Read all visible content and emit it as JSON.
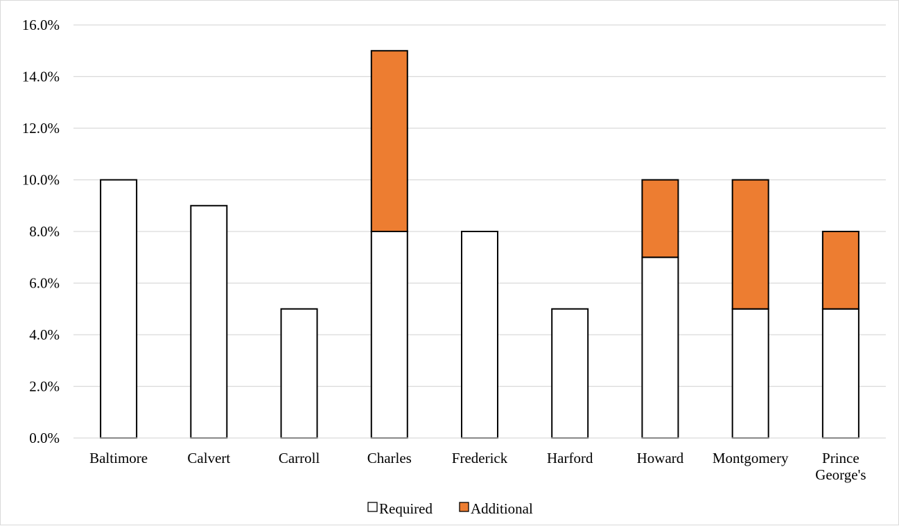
{
  "chart_data": {
    "type": "bar",
    "stacked": true,
    "categories": [
      "Baltimore",
      "Calvert",
      "Carroll",
      "Charles",
      "Frederick",
      "Harford",
      "Howard",
      "Montgomery",
      "Prince George's"
    ],
    "category_lines": [
      [
        "Baltimore"
      ],
      [
        "Calvert"
      ],
      [
        "Carroll"
      ],
      [
        "Charles"
      ],
      [
        "Frederick"
      ],
      [
        "Harford"
      ],
      [
        "Howard"
      ],
      [
        "Montgomery"
      ],
      [
        "Prince",
        "George's"
      ]
    ],
    "series": [
      {
        "name": "Required",
        "values": [
          10,
          9,
          5,
          8,
          8,
          5,
          7,
          5,
          5
        ],
        "color": "#ffffff",
        "stroke": "#000000"
      },
      {
        "name": "Additional",
        "values": [
          0,
          0,
          0,
          7,
          0,
          0,
          3,
          5,
          3
        ],
        "color": "#ed7d31",
        "stroke": "#000000"
      }
    ],
    "yticks": [
      "0.0%",
      "2.0%",
      "4.0%",
      "6.0%",
      "8.0%",
      "10.0%",
      "12.0%",
      "14.0%",
      "16.0%"
    ],
    "ylim": [
      0,
      16
    ],
    "ytick_step": 2,
    "grid": true,
    "legend_position": "bottom",
    "title": "",
    "xlabel": "",
    "ylabel": ""
  }
}
